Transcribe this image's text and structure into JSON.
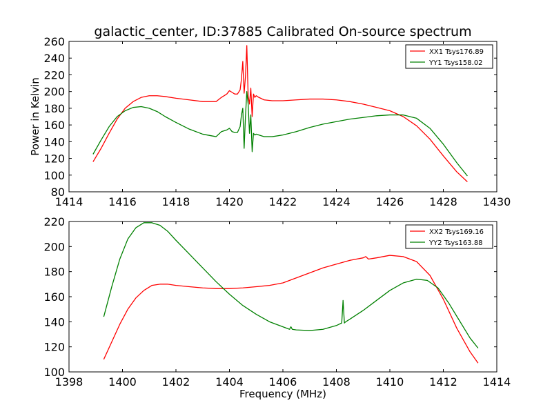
{
  "chart_data": [
    {
      "type": "line",
      "title": "galactic_center, ID:37885 Calibrated On-source spectrum",
      "xlabel": "",
      "ylabel": "Power in Kelvin",
      "xlim": [
        1414,
        1430
      ],
      "ylim": [
        80,
        260
      ],
      "xticks": [
        "1414",
        "1416",
        "1418",
        "1420",
        "1422",
        "1424",
        "1426",
        "1428",
        "1430"
      ],
      "yticks": [
        "80",
        "100",
        "120",
        "140",
        "160",
        "180",
        "200",
        "220",
        "240",
        "260"
      ],
      "grid": false,
      "legend": "top-right",
      "series": [
        {
          "name": "XX1 Tsys176.89",
          "color": "#ff0000",
          "x": [
            1414.9,
            1415.2,
            1415.5,
            1415.8,
            1416.1,
            1416.4,
            1416.7,
            1417.0,
            1417.3,
            1417.6,
            1418.0,
            1418.5,
            1419.0,
            1419.5,
            1419.7,
            1419.9,
            1420.0,
            1420.1,
            1420.2,
            1420.3,
            1420.4,
            1420.45,
            1420.5,
            1420.55,
            1420.6,
            1420.65,
            1420.7,
            1420.75,
            1420.8,
            1420.85,
            1420.9,
            1420.95,
            1421.0,
            1421.1,
            1421.3,
            1421.6,
            1422.0,
            1422.5,
            1423.0,
            1423.5,
            1424.0,
            1424.5,
            1425.0,
            1425.5,
            1426.0,
            1426.5,
            1427.0,
            1427.5,
            1428.0,
            1428.5,
            1428.9
          ],
          "y": [
            116,
            132,
            150,
            167,
            180,
            188,
            193,
            195,
            195,
            194,
            192,
            190,
            188,
            188,
            193,
            197,
            201,
            199,
            197,
            197,
            202,
            215,
            236,
            198,
            218,
            255,
            195,
            185,
            204,
            170,
            197,
            193,
            195,
            193,
            190,
            189,
            189,
            190,
            191,
            191,
            190,
            188,
            185,
            181,
            177,
            170,
            159,
            143,
            123,
            104,
            92
          ]
        },
        {
          "name": "YY1 Tsys158.02",
          "color": "#008000",
          "x": [
            1414.9,
            1415.2,
            1415.5,
            1415.8,
            1416.1,
            1416.4,
            1416.7,
            1417.0,
            1417.3,
            1417.6,
            1418.0,
            1418.5,
            1419.0,
            1419.5,
            1419.7,
            1419.9,
            1420.0,
            1420.1,
            1420.2,
            1420.3,
            1420.4,
            1420.45,
            1420.5,
            1420.55,
            1420.6,
            1420.65,
            1420.7,
            1420.75,
            1420.8,
            1420.85,
            1420.9,
            1420.95,
            1421.0,
            1421.1,
            1421.3,
            1421.6,
            1422.0,
            1422.5,
            1423.0,
            1423.5,
            1424.0,
            1424.5,
            1425.0,
            1425.5,
            1426.0,
            1426.5,
            1427.0,
            1427.5,
            1428.0,
            1428.5,
            1428.9
          ],
          "y": [
            125,
            142,
            158,
            170,
            177,
            181,
            182,
            180,
            176,
            170,
            163,
            155,
            149,
            146,
            152,
            154,
            156,
            152,
            151,
            151,
            158,
            172,
            180,
            132,
            170,
            200,
            185,
            150,
            172,
            128,
            150,
            148,
            149,
            148,
            146,
            146,
            148,
            152,
            157,
            161,
            164,
            167,
            169,
            171,
            172,
            172,
            168,
            156,
            137,
            115,
            99
          ]
        }
      ]
    },
    {
      "type": "line",
      "title": "",
      "xlabel": "Frequency (MHz)",
      "ylabel": "",
      "xlim": [
        1398,
        1414
      ],
      "ylim": [
        100,
        220
      ],
      "xticks": [
        "1398",
        "1400",
        "1402",
        "1404",
        "1406",
        "1408",
        "1410",
        "1412",
        "1414"
      ],
      "yticks": [
        "100",
        "120",
        "140",
        "160",
        "180",
        "200",
        "220"
      ],
      "grid": false,
      "legend": "top-right",
      "series": [
        {
          "name": "XX2 Tsys169.16",
          "color": "#ff0000",
          "x": [
            1399.3,
            1399.6,
            1399.9,
            1400.2,
            1400.5,
            1400.8,
            1401.1,
            1401.4,
            1401.7,
            1402.0,
            1402.5,
            1403.0,
            1403.5,
            1404.0,
            1404.5,
            1405.0,
            1405.5,
            1406.0,
            1406.5,
            1407.0,
            1407.5,
            1408.0,
            1408.5,
            1409.0,
            1409.1,
            1409.2,
            1409.5,
            1410.0,
            1410.5,
            1411.0,
            1411.5,
            1412.0,
            1412.5,
            1413.0,
            1413.3
          ],
          "y": [
            110,
            124,
            138,
            150,
            159,
            165,
            169,
            170,
            170,
            169,
            168,
            167,
            166.5,
            166.5,
            167,
            168,
            169,
            171,
            175,
            179,
            183,
            186,
            189,
            191,
            192,
            190,
            191,
            193,
            192,
            188,
            177,
            158,
            135,
            116,
            107
          ]
        },
        {
          "name": "YY2 Tsys163.88",
          "color": "#008000",
          "x": [
            1399.3,
            1399.6,
            1399.9,
            1400.2,
            1400.5,
            1400.8,
            1401.1,
            1401.4,
            1401.7,
            1402.0,
            1402.5,
            1403.0,
            1403.5,
            1404.0,
            1404.5,
            1405.0,
            1405.5,
            1406.0,
            1406.25,
            1406.3,
            1406.35,
            1406.5,
            1407.0,
            1407.5,
            1408.0,
            1408.2,
            1408.25,
            1408.3,
            1408.35,
            1408.5,
            1409.0,
            1409.5,
            1410.0,
            1410.5,
            1411.0,
            1411.4,
            1411.8,
            1412.2,
            1412.6,
            1413.0,
            1413.3
          ],
          "y": [
            144,
            168,
            190,
            206,
            215,
            219,
            219,
            217,
            212,
            205,
            194,
            183,
            172,
            162,
            153,
            146,
            140,
            136,
            134,
            136,
            134,
            133.5,
            133,
            134,
            137,
            139,
            157,
            139,
            140,
            142,
            149,
            157,
            165,
            171,
            174,
            173,
            167,
            155,
            141,
            127,
            119
          ]
        }
      ]
    }
  ]
}
